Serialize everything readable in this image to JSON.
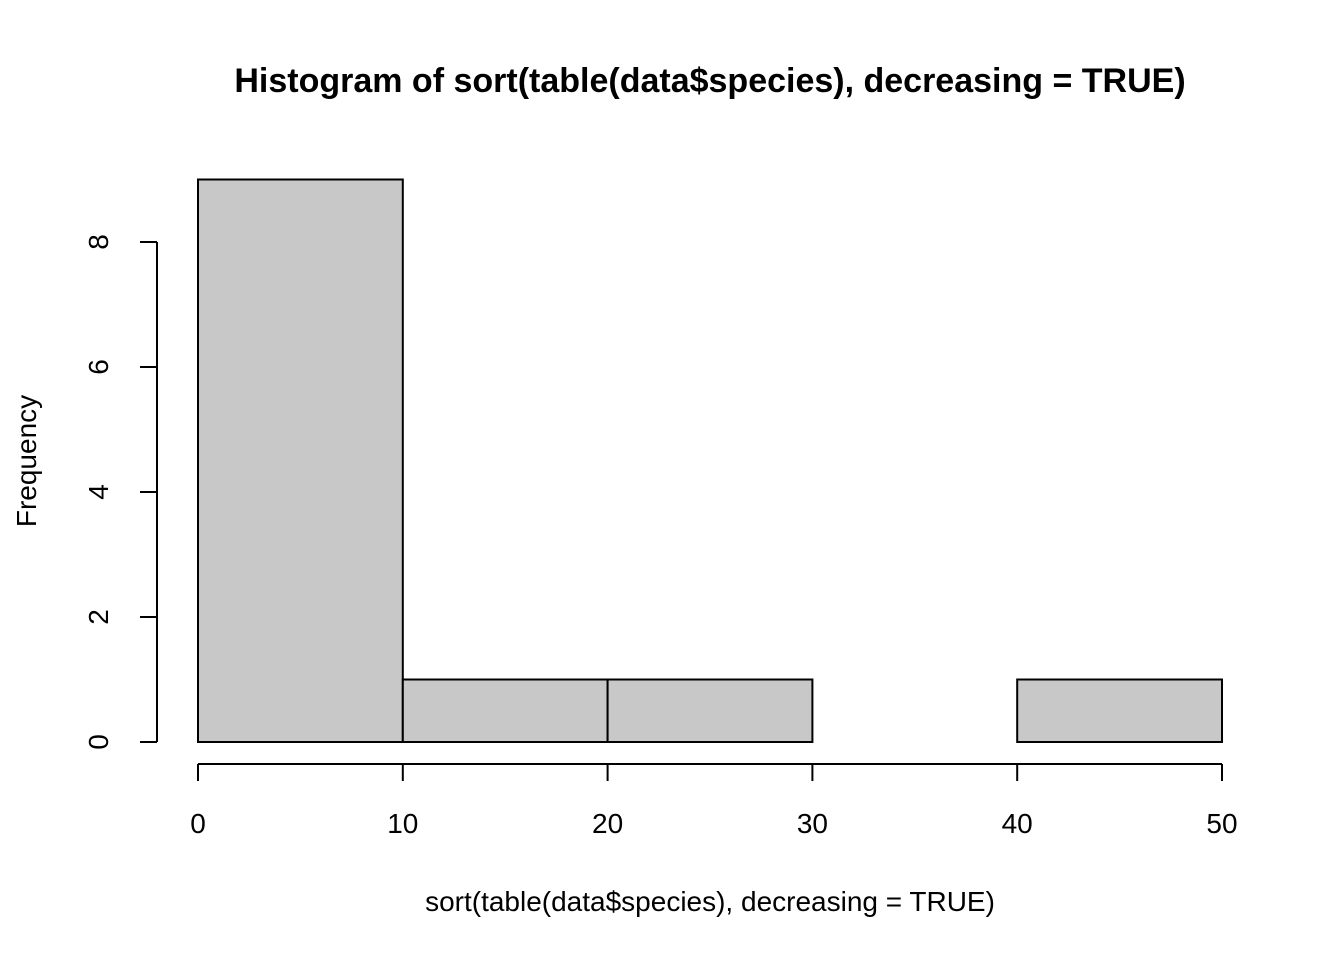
{
  "chart_data": {
    "type": "bar",
    "title": "Histogram of sort(table(data$species), decreasing = TRUE)",
    "xlabel": "sort(table(data$species), decreasing = TRUE)",
    "ylabel": "Frequency",
    "bins": [
      {
        "start": 0,
        "end": 10,
        "count": 9
      },
      {
        "start": 10,
        "end": 20,
        "count": 1
      },
      {
        "start": 20,
        "end": 30,
        "count": 1
      },
      {
        "start": 30,
        "end": 40,
        "count": 0
      },
      {
        "start": 40,
        "end": 50,
        "count": 1
      }
    ],
    "xlim": [
      0,
      50
    ],
    "ylim": [
      0,
      9
    ],
    "x_ticks": [
      0,
      10,
      20,
      30,
      40,
      50
    ],
    "y_ticks": [
      0,
      2,
      4,
      6,
      8
    ],
    "grid": false,
    "bar_color": "#c8c8c8",
    "border_color": "#000000"
  }
}
